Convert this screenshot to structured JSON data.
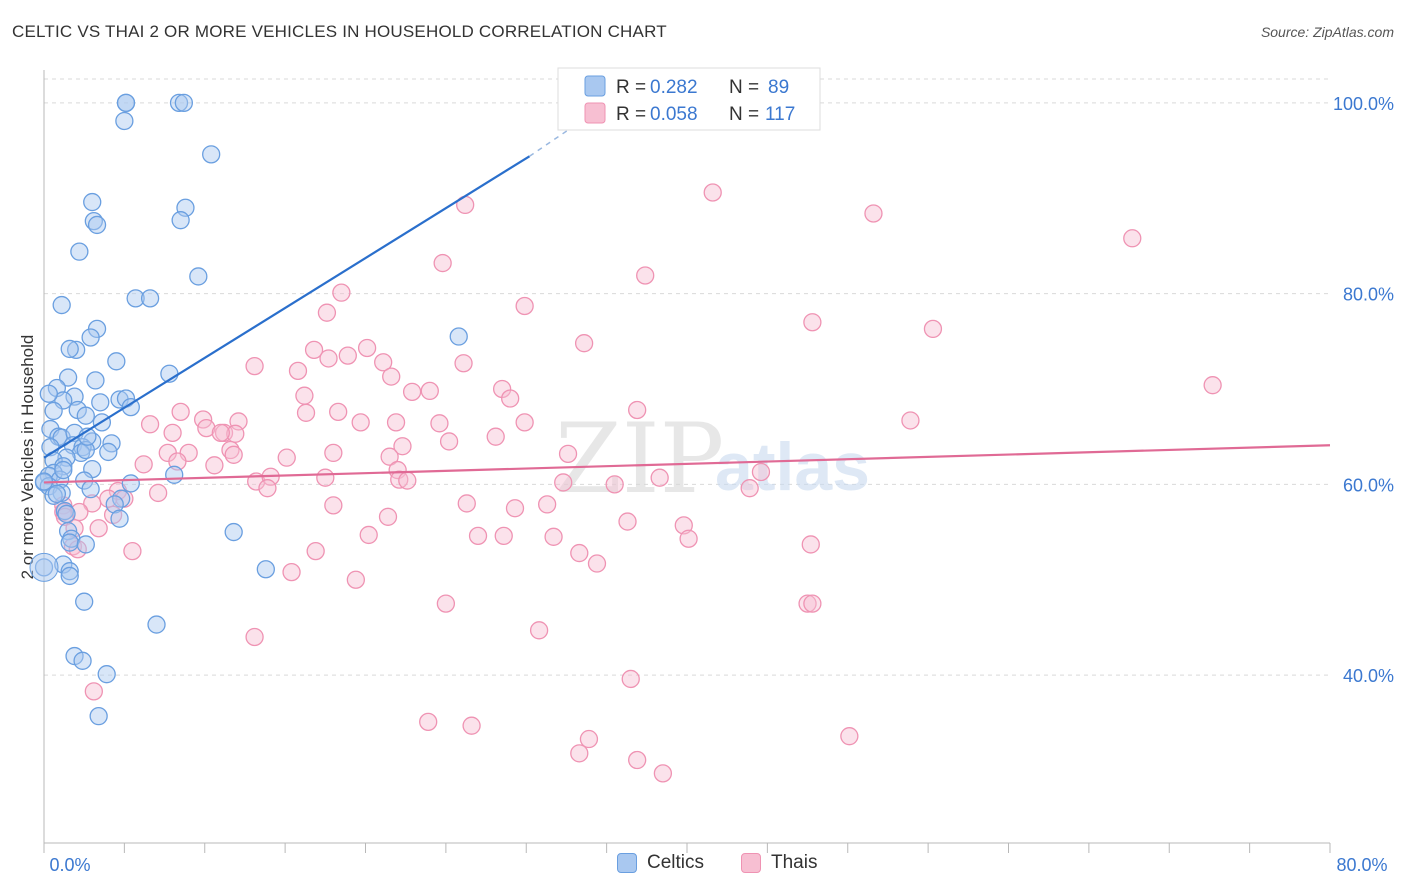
{
  "title": "CELTIC VS THAI 2 OR MORE VEHICLES IN HOUSEHOLD CORRELATION CHART",
  "source": "Source: ZipAtlas.com",
  "watermark": {
    "zip": "ZIP",
    "atlas": "atlas"
  },
  "colors": {
    "celtic_fill": "#a9c8f0",
    "celtic_stroke": "#6a9fe0",
    "celtic_line": "#2a6fcc",
    "thai_fill": "#f7bfd2",
    "thai_stroke": "#ef93b3",
    "thai_line": "#e06a95",
    "axis_text": "#3b78d0",
    "grid": "#d9d9d9"
  },
  "legend": {
    "r_label": "R =",
    "n_label": "N =",
    "celtic": {
      "r": "0.282",
      "n": "89"
    },
    "thai": {
      "r": "0.058",
      "n": "117"
    }
  },
  "bottom_legend": {
    "celtic": "Celtics",
    "thai": "Thais"
  },
  "chart_data": {
    "type": "scatter",
    "xlabel": "",
    "ylabel": "2 or more Vehicles in Household",
    "xlim": [
      0,
      80
    ],
    "ylim": [
      22.4,
      102.5
    ],
    "x_tick_labels": [
      "0.0%",
      "80.0%"
    ],
    "y_ticks": [
      40,
      60,
      80,
      100
    ],
    "y_tick_labels": [
      "40.0%",
      "60.0%",
      "80.0%",
      "100.0%"
    ],
    "grid": true,
    "series": [
      {
        "name": "Celtics",
        "trend": {
          "x0": 0,
          "y0": 62.8,
          "x1": 30.2,
          "y1": 94.4,
          "dash_to_x": 33.0,
          "dash_to_y": 97.6
        },
        "points": [
          [
            5.1,
            100
          ],
          [
            5.1,
            100
          ],
          [
            8.4,
            100
          ],
          [
            8.7,
            100
          ],
          [
            5.0,
            98.1
          ],
          [
            10.4,
            94.6
          ],
          [
            3.0,
            89.6
          ],
          [
            8.8,
            89.0
          ],
          [
            8.5,
            87.7
          ],
          [
            3.1,
            87.6
          ],
          [
            3.3,
            87.2
          ],
          [
            2.2,
            84.4
          ],
          [
            9.6,
            81.8
          ],
          [
            5.7,
            79.5
          ],
          [
            6.6,
            79.5
          ],
          [
            1.1,
            78.8
          ],
          [
            3.3,
            76.3
          ],
          [
            2.9,
            75.4
          ],
          [
            25.8,
            75.5
          ],
          [
            2.0,
            74.1
          ],
          [
            1.6,
            74.2
          ],
          [
            4.5,
            72.9
          ],
          [
            7.8,
            71.6
          ],
          [
            1.5,
            71.2
          ],
          [
            3.2,
            70.9
          ],
          [
            0.8,
            70.1
          ],
          [
            1.9,
            69.2
          ],
          [
            1.2,
            68.8
          ],
          [
            4.7,
            68.9
          ],
          [
            5.1,
            69.0
          ],
          [
            3.5,
            68.6
          ],
          [
            5.4,
            68.1
          ],
          [
            2.1,
            67.8
          ],
          [
            0.6,
            67.7
          ],
          [
            2.6,
            67.2
          ],
          [
            3.6,
            66.5
          ],
          [
            0.4,
            65.8
          ],
          [
            0.9,
            65.0
          ],
          [
            1.1,
            64.9
          ],
          [
            1.9,
            65.4
          ],
          [
            3.0,
            64.5
          ],
          [
            4.2,
            64.3
          ],
          [
            1.8,
            64.1
          ],
          [
            0.4,
            63.9
          ],
          [
            2.4,
            63.9
          ],
          [
            2.3,
            63.3
          ],
          [
            2.6,
            63.6
          ],
          [
            4.0,
            63.4
          ],
          [
            1.4,
            62.8
          ],
          [
            0.6,
            62.5
          ],
          [
            1.2,
            61.9
          ],
          [
            3.0,
            61.6
          ],
          [
            0.6,
            61.2
          ],
          [
            0.3,
            60.9
          ],
          [
            8.1,
            61.0
          ],
          [
            1.0,
            60.5
          ],
          [
            2.5,
            60.4
          ],
          [
            0.0,
            60.2
          ],
          [
            5.4,
            60.1
          ],
          [
            0.3,
            59.8
          ],
          [
            2.9,
            59.5
          ],
          [
            1.1,
            59.1
          ],
          [
            0.6,
            58.8
          ],
          [
            4.8,
            58.5
          ],
          [
            4.4,
            57.9
          ],
          [
            1.3,
            57.2
          ],
          [
            1.4,
            56.9
          ],
          [
            4.7,
            56.4
          ],
          [
            1.5,
            55.1
          ],
          [
            11.8,
            55.0
          ],
          [
            1.7,
            54.3
          ],
          [
            1.6,
            53.9
          ],
          [
            2.6,
            53.7
          ],
          [
            0.0,
            51.3
          ],
          [
            1.2,
            51.6
          ],
          [
            13.8,
            51.1
          ],
          [
            1.6,
            50.9
          ],
          [
            1.6,
            50.4
          ],
          [
            2.5,
            47.7
          ],
          [
            7.0,
            45.3
          ],
          [
            1.9,
            42.0
          ],
          [
            2.4,
            41.5
          ],
          [
            3.9,
            40.1
          ],
          [
            3.4,
            35.7
          ],
          [
            0.0,
            60.3
          ],
          [
            0.8,
            59.0
          ],
          [
            1.2,
            61.5
          ],
          [
            2.7,
            65.0
          ],
          [
            0.3,
            69.5
          ]
        ]
      },
      {
        "name": "Thais",
        "trend": {
          "x0": 0,
          "y0": 60.2,
          "x1": 80.0,
          "y1": 64.1
        },
        "points": [
          [
            41.6,
            90.6
          ],
          [
            26.2,
            89.3
          ],
          [
            51.6,
            88.4
          ],
          [
            67.7,
            85.8
          ],
          [
            24.8,
            83.2
          ],
          [
            37.4,
            81.9
          ],
          [
            18.5,
            80.1
          ],
          [
            29.9,
            78.7
          ],
          [
            17.6,
            78.0
          ],
          [
            47.8,
            77.0
          ],
          [
            55.3,
            76.3
          ],
          [
            33.6,
            74.8
          ],
          [
            16.8,
            74.1
          ],
          [
            18.9,
            73.5
          ],
          [
            17.7,
            73.2
          ],
          [
            20.1,
            74.3
          ],
          [
            21.1,
            72.8
          ],
          [
            26.1,
            72.7
          ],
          [
            13.1,
            72.4
          ],
          [
            15.8,
            71.9
          ],
          [
            21.6,
            71.3
          ],
          [
            72.7,
            70.4
          ],
          [
            28.5,
            70.0
          ],
          [
            22.9,
            69.7
          ],
          [
            24.0,
            69.8
          ],
          [
            16.2,
            69.3
          ],
          [
            29.0,
            69.0
          ],
          [
            36.9,
            67.8
          ],
          [
            8.5,
            67.6
          ],
          [
            16.3,
            67.5
          ],
          [
            18.3,
            67.6
          ],
          [
            9.9,
            66.8
          ],
          [
            12.1,
            66.6
          ],
          [
            19.7,
            66.5
          ],
          [
            21.9,
            66.5
          ],
          [
            24.6,
            66.4
          ],
          [
            29.9,
            66.5
          ],
          [
            53.9,
            66.7
          ],
          [
            6.6,
            66.3
          ],
          [
            10.1,
            65.9
          ],
          [
            11.2,
            65.4
          ],
          [
            11.9,
            65.3
          ],
          [
            11.0,
            65.4
          ],
          [
            8.0,
            65.4
          ],
          [
            25.2,
            64.5
          ],
          [
            28.1,
            65.0
          ],
          [
            22.3,
            64.0
          ],
          [
            9.0,
            63.3
          ],
          [
            18.0,
            63.3
          ],
          [
            11.6,
            63.6
          ],
          [
            11.8,
            63.1
          ],
          [
            15.1,
            62.8
          ],
          [
            21.5,
            62.9
          ],
          [
            32.6,
            63.2
          ],
          [
            7.7,
            63.3
          ],
          [
            8.3,
            62.4
          ],
          [
            10.6,
            62.0
          ],
          [
            6.2,
            62.1
          ],
          [
            22.0,
            61.5
          ],
          [
            44.6,
            61.3
          ],
          [
            13.2,
            60.3
          ],
          [
            14.1,
            60.8
          ],
          [
            17.5,
            60.7
          ],
          [
            22.1,
            60.5
          ],
          [
            22.6,
            60.4
          ],
          [
            38.3,
            60.7
          ],
          [
            32.3,
            60.2
          ],
          [
            35.5,
            60.0
          ],
          [
            43.9,
            59.6
          ],
          [
            13.9,
            59.6
          ],
          [
            4.6,
            59.3
          ],
          [
            7.1,
            59.1
          ],
          [
            5.0,
            58.5
          ],
          [
            4.0,
            58.5
          ],
          [
            3.0,
            58.0
          ],
          [
            1.2,
            57.8
          ],
          [
            18.0,
            57.8
          ],
          [
            26.3,
            58.0
          ],
          [
            29.3,
            57.5
          ],
          [
            31.3,
            57.9
          ],
          [
            1.2,
            57.1
          ],
          [
            2.2,
            57.1
          ],
          [
            4.3,
            56.8
          ],
          [
            1.3,
            56.6
          ],
          [
            21.4,
            56.6
          ],
          [
            36.3,
            56.1
          ],
          [
            39.8,
            55.7
          ],
          [
            1.9,
            55.4
          ],
          [
            3.4,
            55.4
          ],
          [
            20.2,
            54.7
          ],
          [
            27.0,
            54.6
          ],
          [
            28.6,
            54.6
          ],
          [
            31.7,
            54.5
          ],
          [
            40.1,
            54.3
          ],
          [
            47.7,
            53.7
          ],
          [
            1.8,
            53.5
          ],
          [
            2.1,
            53.2
          ],
          [
            5.5,
            53.0
          ],
          [
            16.9,
            53.0
          ],
          [
            33.3,
            52.8
          ],
          [
            34.4,
            51.7
          ],
          [
            15.4,
            50.8
          ],
          [
            19.4,
            50.0
          ],
          [
            25.0,
            47.5
          ],
          [
            47.5,
            47.5
          ],
          [
            47.8,
            47.5
          ],
          [
            30.8,
            44.7
          ],
          [
            13.1,
            44.0
          ],
          [
            36.5,
            39.6
          ],
          [
            3.1,
            38.3
          ],
          [
            23.9,
            35.1
          ],
          [
            26.6,
            34.7
          ],
          [
            33.9,
            33.3
          ],
          [
            50.1,
            33.6
          ],
          [
            33.3,
            31.8
          ],
          [
            36.9,
            31.1
          ],
          [
            38.5,
            29.7
          ]
        ]
      }
    ]
  }
}
